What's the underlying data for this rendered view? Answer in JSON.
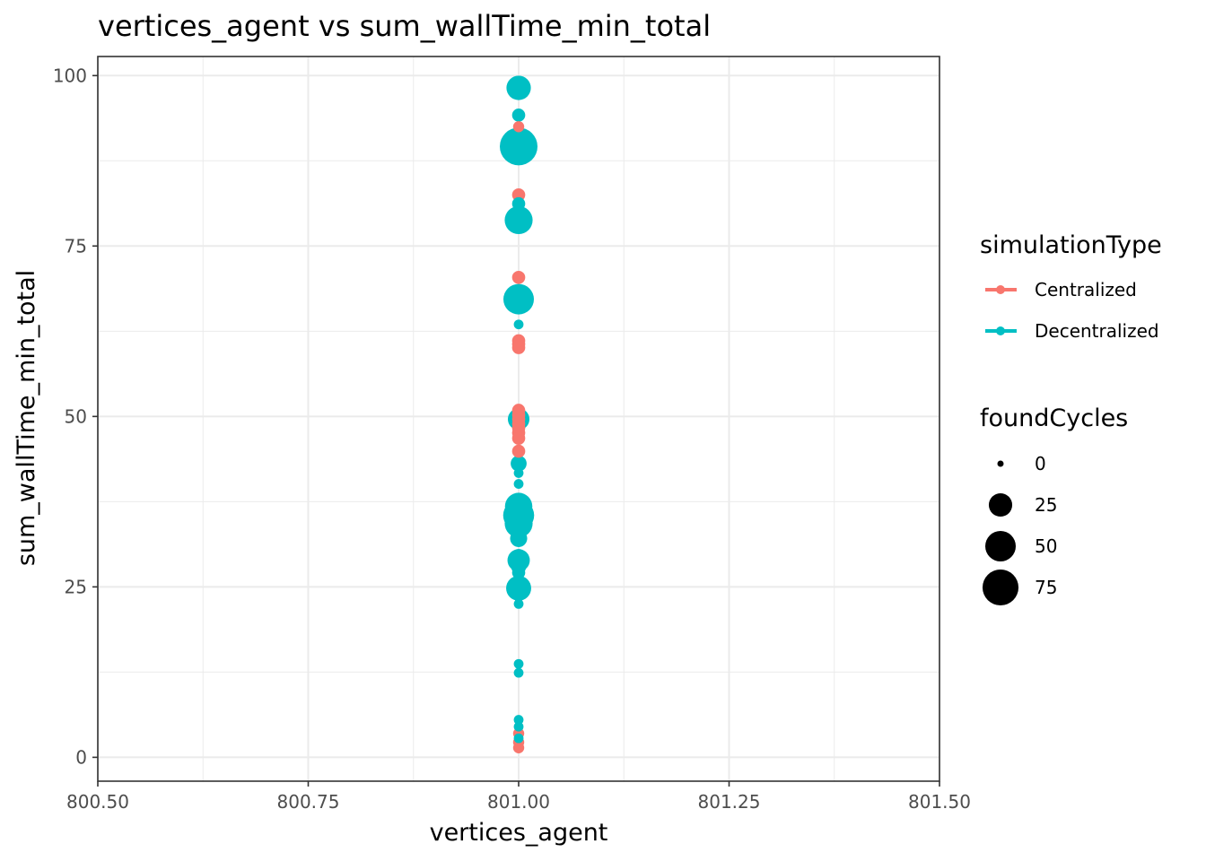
{
  "chart_data": {
    "type": "scatter",
    "title": "vertices_agent  vs  sum_wallTime_min_total",
    "xlabel": "vertices_agent",
    "ylabel": "sum_wallTime_min_total",
    "xlim": [
      800.5,
      801.5
    ],
    "ylim": [
      -3.5,
      102.8
    ],
    "x_ticks": [
      "800.50",
      "800.75",
      "801.00",
      "801.25",
      "801.50"
    ],
    "y_ticks": [
      "0",
      "25",
      "50",
      "75",
      "100"
    ],
    "grid": true,
    "legend_placement": "right",
    "color_legend": {
      "title": "simulationType",
      "entries": [
        {
          "label": "Centralized",
          "color": "#F8766D"
        },
        {
          "label": "Decentralized",
          "color": "#00BFC4"
        }
      ]
    },
    "size_legend": {
      "title": "foundCycles",
      "entries": [
        {
          "label": "0",
          "value": 0
        },
        {
          "label": "25",
          "value": 25
        },
        {
          "label": "50",
          "value": 50
        },
        {
          "label": "75",
          "value": 75
        }
      ]
    },
    "series": [
      {
        "name": "Centralized",
        "color": "#F8766D",
        "points": [
          {
            "x": 801,
            "y": 92.5,
            "size": 2
          },
          {
            "x": 801,
            "y": 82.5,
            "size": 4
          },
          {
            "x": 801,
            "y": 70.4,
            "size": 4
          },
          {
            "x": 801,
            "y": 61.1,
            "size": 4
          },
          {
            "x": 801,
            "y": 60.6,
            "size": 4
          },
          {
            "x": 801,
            "y": 60.1,
            "size": 4
          },
          {
            "x": 801,
            "y": 50.9,
            "size": 4
          },
          {
            "x": 801,
            "y": 50.2,
            "size": 4
          },
          {
            "x": 801,
            "y": 49.6,
            "size": 4
          },
          {
            "x": 801,
            "y": 48.9,
            "size": 4
          },
          {
            "x": 801,
            "y": 48.3,
            "size": 4
          },
          {
            "x": 801,
            "y": 47.6,
            "size": 4
          },
          {
            "x": 801,
            "y": 46.8,
            "size": 4
          },
          {
            "x": 801,
            "y": 44.9,
            "size": 4
          },
          {
            "x": 801,
            "y": 3.5,
            "size": 2
          },
          {
            "x": 801,
            "y": 2.2,
            "size": 2
          },
          {
            "x": 801,
            "y": 1.4,
            "size": 2
          }
        ]
      },
      {
        "name": "Decentralized",
        "color": "#00BFC4",
        "points": [
          {
            "x": 801,
            "y": 98.2,
            "size": 28
          },
          {
            "x": 801,
            "y": 94.2,
            "size": 4
          },
          {
            "x": 801,
            "y": 89.6,
            "size": 84
          },
          {
            "x": 801,
            "y": 81.2,
            "size": 4
          },
          {
            "x": 801,
            "y": 78.8,
            "size": 40
          },
          {
            "x": 801,
            "y": 67.2,
            "size": 50
          },
          {
            "x": 801,
            "y": 63.5,
            "size": 1
          },
          {
            "x": 801,
            "y": 49.6,
            "size": 20
          },
          {
            "x": 801,
            "y": 43.1,
            "size": 8
          },
          {
            "x": 801,
            "y": 41.7,
            "size": 1
          },
          {
            "x": 801,
            "y": 40.1,
            "size": 1
          },
          {
            "x": 801,
            "y": 36.8,
            "size": 38
          },
          {
            "x": 801,
            "y": 35.5,
            "size": 52
          },
          {
            "x": 801,
            "y": 34.3,
            "size": 40
          },
          {
            "x": 801,
            "y": 32.1,
            "size": 10
          },
          {
            "x": 801,
            "y": 29.6,
            "size": 4
          },
          {
            "x": 801,
            "y": 28.9,
            "size": 22
          },
          {
            "x": 801,
            "y": 27.9,
            "size": 6
          },
          {
            "x": 801,
            "y": 27.1,
            "size": 4
          },
          {
            "x": 801,
            "y": 24.8,
            "size": 30
          },
          {
            "x": 801,
            "y": 23.5,
            "size": 1
          },
          {
            "x": 801,
            "y": 22.5,
            "size": 1
          },
          {
            "x": 801,
            "y": 13.7,
            "size": 1
          },
          {
            "x": 801,
            "y": 12.4,
            "size": 1
          },
          {
            "x": 801,
            "y": 5.5,
            "size": 1
          },
          {
            "x": 801,
            "y": 4.5,
            "size": 1
          },
          {
            "x": 801,
            "y": 2.8,
            "size": 1
          }
        ]
      }
    ]
  }
}
